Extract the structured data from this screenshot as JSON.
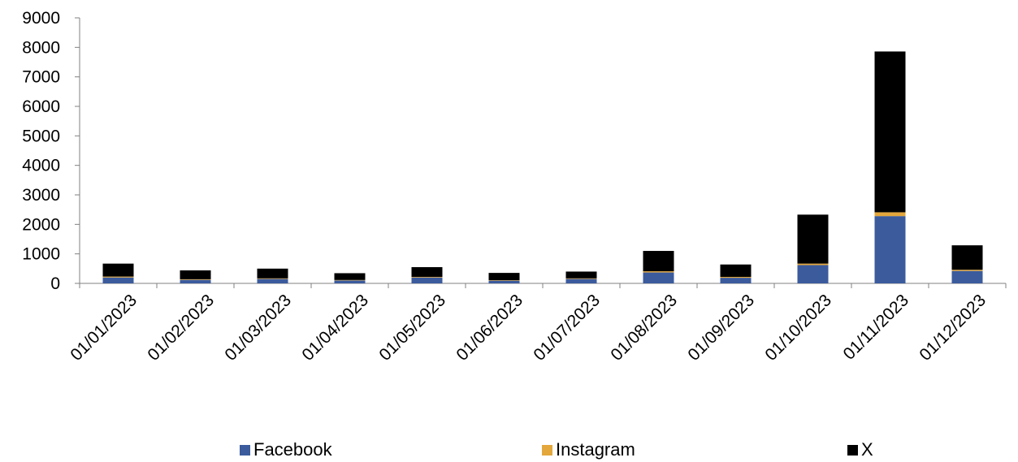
{
  "chart_data": {
    "type": "bar",
    "stacked": true,
    "categories": [
      "01/01/2023",
      "01/02/2023",
      "01/03/2023",
      "01/04/2023",
      "01/05/2023",
      "01/06/2023",
      "01/07/2023",
      "01/08/2023",
      "01/09/2023",
      "01/10/2023",
      "01/11/2023",
      "01/12/2023"
    ],
    "series": [
      {
        "name": "Facebook",
        "color": "#3b5b9d",
        "values": [
          200,
          120,
          150,
          100,
          200,
          90,
          150,
          370,
          190,
          620,
          2280,
          420
        ]
      },
      {
        "name": "Instagram",
        "color": "#e3a73b",
        "values": [
          30,
          20,
          20,
          15,
          20,
          15,
          20,
          40,
          30,
          50,
          130,
          40
        ]
      },
      {
        "name": "X",
        "color": "#000000",
        "values": [
          440,
          300,
          330,
          230,
          330,
          250,
          230,
          690,
          420,
          1660,
          5450,
          830
        ]
      }
    ],
    "yticks": [
      "0",
      "1000",
      "2000",
      "3000",
      "4000",
      "5000",
      "6000",
      "7000",
      "8000",
      "9000"
    ],
    "ylim": [
      0,
      9000
    ],
    "grid": false,
    "legend_position": "bottom"
  }
}
